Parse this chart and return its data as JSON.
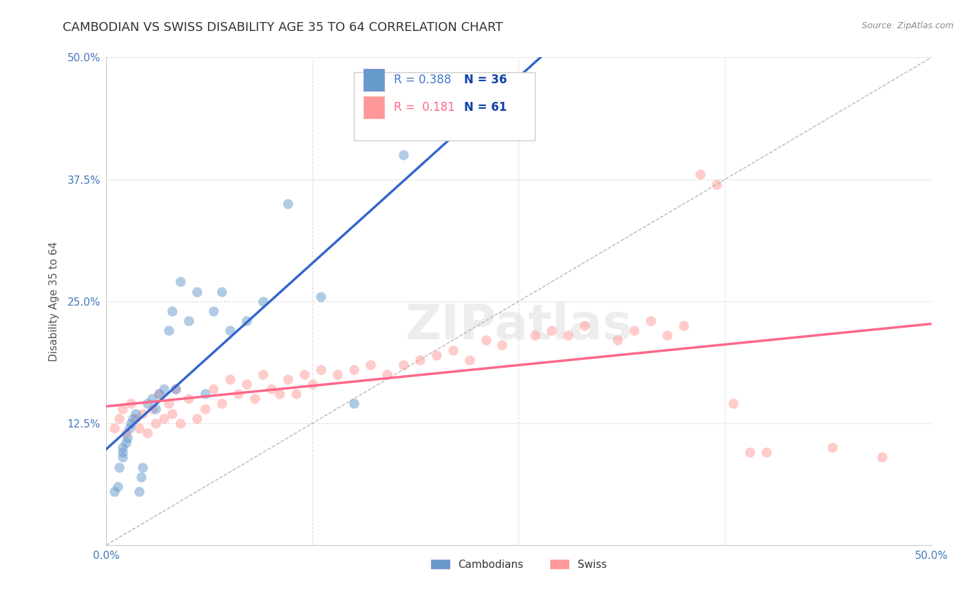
{
  "title": "CAMBODIAN VS SWISS DISABILITY AGE 35 TO 64 CORRELATION CHART",
  "source": "Source: ZipAtlas.com",
  "ylabel": "Disability Age 35 to 64",
  "xlim": [
    0.0,
    0.5
  ],
  "ylim": [
    0.0,
    0.5
  ],
  "xticks": [
    0.0,
    0.125,
    0.25,
    0.375,
    0.5
  ],
  "yticks": [
    0.0,
    0.125,
    0.25,
    0.375,
    0.5
  ],
  "R_cambodian": 0.388,
  "N_cambodian": 36,
  "R_swiss": 0.181,
  "N_swiss": 61,
  "cambodian_color": "#6699CC",
  "swiss_color": "#FF9999",
  "title_fontsize": 13,
  "axis_label_fontsize": 11,
  "tick_fontsize": 11,
  "background_color": "#FFFFFF",
  "cambodian_x": [
    0.005,
    0.007,
    0.008,
    0.01,
    0.01,
    0.01,
    0.012,
    0.013,
    0.014,
    0.015,
    0.016,
    0.018,
    0.02,
    0.021,
    0.022,
    0.025,
    0.028,
    0.03,
    0.032,
    0.035,
    0.038,
    0.04,
    0.042,
    0.045,
    0.05,
    0.055,
    0.06,
    0.065,
    0.07,
    0.075,
    0.085,
    0.095,
    0.11,
    0.13,
    0.15,
    0.18
  ],
  "cambodian_y": [
    0.055,
    0.06,
    0.08,
    0.09,
    0.095,
    0.1,
    0.105,
    0.11,
    0.12,
    0.125,
    0.13,
    0.135,
    0.055,
    0.07,
    0.08,
    0.145,
    0.15,
    0.14,
    0.155,
    0.16,
    0.22,
    0.24,
    0.16,
    0.27,
    0.23,
    0.26,
    0.155,
    0.24,
    0.26,
    0.22,
    0.23,
    0.25,
    0.35,
    0.255,
    0.145,
    0.4
  ],
  "swiss_x": [
    0.005,
    0.008,
    0.01,
    0.012,
    0.015,
    0.018,
    0.02,
    0.022,
    0.025,
    0.028,
    0.03,
    0.032,
    0.035,
    0.038,
    0.04,
    0.042,
    0.045,
    0.05,
    0.055,
    0.06,
    0.065,
    0.07,
    0.075,
    0.08,
    0.085,
    0.09,
    0.095,
    0.1,
    0.105,
    0.11,
    0.115,
    0.12,
    0.125,
    0.13,
    0.14,
    0.15,
    0.16,
    0.17,
    0.18,
    0.19,
    0.2,
    0.21,
    0.22,
    0.23,
    0.24,
    0.26,
    0.27,
    0.28,
    0.29,
    0.31,
    0.32,
    0.33,
    0.34,
    0.35,
    0.36,
    0.37,
    0.38,
    0.39,
    0.4,
    0.44,
    0.47
  ],
  "swiss_y": [
    0.12,
    0.13,
    0.14,
    0.115,
    0.145,
    0.13,
    0.12,
    0.135,
    0.115,
    0.14,
    0.125,
    0.155,
    0.13,
    0.145,
    0.135,
    0.16,
    0.125,
    0.15,
    0.13,
    0.14,
    0.16,
    0.145,
    0.17,
    0.155,
    0.165,
    0.15,
    0.175,
    0.16,
    0.155,
    0.17,
    0.155,
    0.175,
    0.165,
    0.18,
    0.175,
    0.18,
    0.185,
    0.175,
    0.185,
    0.19,
    0.195,
    0.2,
    0.19,
    0.21,
    0.205,
    0.215,
    0.22,
    0.215,
    0.225,
    0.21,
    0.22,
    0.23,
    0.215,
    0.225,
    0.38,
    0.37,
    0.145,
    0.095,
    0.095,
    0.1,
    0.09
  ]
}
